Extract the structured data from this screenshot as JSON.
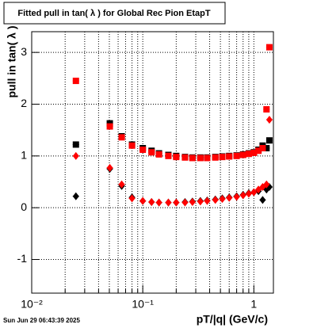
{
  "chart_data": {
    "type": "scatter",
    "title": "Fitted pull in tan( λ ) for Global Rec Pion EtapT",
    "x_label": "pT/|q| (GeV/c)",
    "y_label": "pull in tan( λ )",
    "footer": "Sun Jun 29 06:43:39 2025",
    "x": [
      0.025,
      0.0505,
      0.0646,
      0.08,
      0.1,
      0.12,
      0.14,
      0.17,
      0.2,
      0.24,
      0.28,
      0.33,
      0.38,
      0.45,
      0.52,
      0.6,
      0.7,
      0.8,
      0.9,
      1.0,
      1.1,
      1.2,
      1.3,
      1.38
    ],
    "series": [
      {
        "color": "#000000",
        "marker": "square",
        "values": [
          1.22,
          1.63,
          1.38,
          1.22,
          1.15,
          1.1,
          1.05,
          1.02,
          1.0,
          0.98,
          0.97,
          0.97,
          0.97,
          0.98,
          0.99,
          1.0,
          1.01,
          1.03,
          1.05,
          1.07,
          1.12,
          1.2,
          1.15,
          1.3
        ]
      },
      {
        "color": "#ff0000",
        "marker": "square",
        "values": [
          2.45,
          1.57,
          1.36,
          1.2,
          1.12,
          1.07,
          1.03,
          1.0,
          0.98,
          0.97,
          0.96,
          0.96,
          0.96,
          0.97,
          0.98,
          0.99,
          1.0,
          1.02,
          1.04,
          1.06,
          1.1,
          1.15,
          1.9,
          3.1
        ]
      },
      {
        "color": "#000000",
        "marker": "diamond",
        "values": [
          0.22,
          0.75,
          0.42,
          0.2,
          0.13,
          0.11,
          0.1,
          0.1,
          0.1,
          0.11,
          0.12,
          0.13,
          0.14,
          0.16,
          0.18,
          0.2,
          0.22,
          0.25,
          0.28,
          0.3,
          0.32,
          0.15,
          0.35,
          0.4
        ]
      },
      {
        "color": "#ff0000",
        "marker": "diamond",
        "values": [
          1.0,
          0.77,
          0.45,
          0.18,
          0.13,
          0.11,
          0.1,
          0.1,
          0.1,
          0.1,
          0.11,
          0.12,
          0.13,
          0.15,
          0.17,
          0.19,
          0.21,
          0.24,
          0.27,
          0.3,
          0.35,
          0.4,
          0.45,
          1.7
        ]
      }
    ],
    "xlog": true,
    "xlim": [
      0.01,
      1.5
    ],
    "ylim": [
      -1.65,
      3.4
    ],
    "xticks": [
      {
        "value": 0.01,
        "label": "10⁻²"
      },
      {
        "value": 0.1,
        "label": "10⁻¹"
      },
      1
    ],
    "xminorticks": [
      0.02,
      0.03,
      0.04,
      0.05,
      0.06,
      0.07,
      0.08,
      0.09,
      0.2,
      0.3,
      0.4,
      0.5,
      0.6,
      0.7,
      0.8,
      0.9
    ],
    "yticks": [
      -1,
      0,
      1,
      2,
      3
    ],
    "grid": true
  }
}
